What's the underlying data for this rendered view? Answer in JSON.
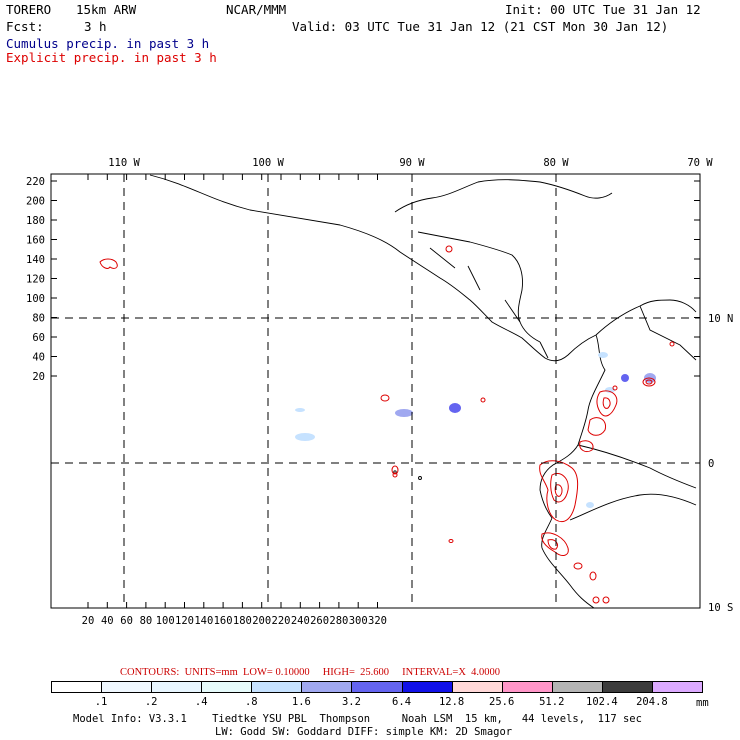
{
  "header": {
    "run_name": "TORERO",
    "resolution": "15km ARW",
    "org": "NCAR/MMM",
    "init": "Init: 00 UTC Tue 31 Jan 12",
    "fcst_label": "Fcst:",
    "fcst_value": "3 h",
    "valid": "Valid: 03 UTC Tue 31 Jan 12 (21 CST Mon 30 Jan 12)",
    "field1": "Cumulus precip. in past 3 h",
    "field2": "Explicit precip. in past 3 h",
    "field1_color": "#00008b",
    "field2_color": "#dd0000"
  },
  "map": {
    "top_lon_labels": [
      "110 W",
      "100 W",
      "90 W",
      "80 W",
      "70 W"
    ],
    "right_lat_labels": [
      "10 N",
      "0",
      "10 S"
    ],
    "y_ticks": [
      "220",
      "200",
      "180",
      "160",
      "140",
      "120",
      "100",
      "80",
      "60",
      "40",
      "20"
    ],
    "x_ticks": [
      "20",
      "40",
      "60",
      "80",
      "100",
      "120",
      "140",
      "160",
      "180",
      "200",
      "220",
      "240",
      "260",
      "280",
      "300",
      "320"
    ]
  },
  "contours": {
    "text": "CONTOURS:  UNITS=mm  LOW= 0.10000     HIGH=  25.600     INTERVAL=X  4.0000",
    "color": "#cc0000"
  },
  "colorbar": {
    "labels": [
      ".1",
      ".2",
      ".4",
      ".8",
      "1.6",
      "3.2",
      "6.4",
      "12.8",
      "25.6",
      "51.2",
      "102.4",
      "204.8"
    ],
    "unit": "mm",
    "colors": [
      "#ffffff",
      "#f0f8ff",
      "#e8f6ff",
      "#e6fbfb",
      "#c6e2ff",
      "#a0a8f0",
      "#6464f0",
      "#1010e8",
      "#ffd8d8",
      "#ff96c8",
      "#b4b4b4",
      "#3c3c3c",
      "#dcaaff"
    ]
  },
  "footer": {
    "line1": "Model Info: V3.3.1    Tiedtke YSU PBL  Thompson     Noah LSM  15 km,   44 levels,  117 sec",
    "line2": "LW: Godd SW: Goddard DIFF: simple KM: 2D Smagor"
  }
}
